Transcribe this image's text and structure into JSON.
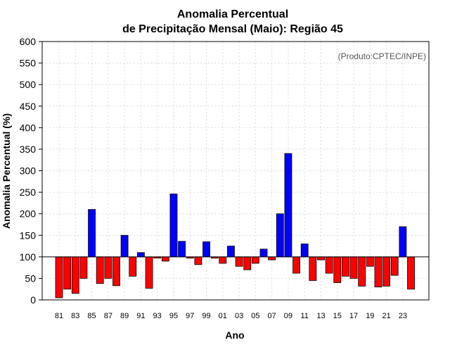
{
  "chart_data": {
    "type": "bar",
    "title_line1": "Anomalia Percentual",
    "title_line2": "de Precipitação Mensal (Maio): Região 45",
    "xlabel": "Ano",
    "ylabel": "Anomalia Percentual (%)",
    "credit": "(Produto:CPTEC/INPE)",
    "ylim": [
      0,
      600
    ],
    "yticks": [
      0,
      50,
      100,
      150,
      200,
      250,
      300,
      350,
      400,
      450,
      500,
      550,
      600
    ],
    "baseline": 100,
    "above_color": "#0000ff",
    "below_color": "#ff0000",
    "categories": [
      "81",
      "82",
      "83",
      "84",
      "85",
      "86",
      "87",
      "88",
      "89",
      "90",
      "91",
      "92",
      "93",
      "94",
      "95",
      "96",
      "97",
      "98",
      "99",
      "00",
      "01",
      "02",
      "03",
      "04",
      "05",
      "06",
      "07",
      "08",
      "09",
      "10",
      "11",
      "12",
      "13",
      "14",
      "15",
      "16",
      "17",
      "18",
      "19",
      "20",
      "21",
      "22",
      "23",
      "24"
    ],
    "x_tick_labels": [
      "81",
      "83",
      "85",
      "87",
      "89",
      "91",
      "93",
      "95",
      "97",
      "99",
      "01",
      "03",
      "05",
      "07",
      "09",
      "11",
      "13",
      "15",
      "17",
      "19",
      "21",
      "23"
    ],
    "values": [
      5,
      25,
      15,
      50,
      210,
      38,
      50,
      33,
      150,
      55,
      110,
      27,
      97,
      90,
      246,
      136,
      97,
      82,
      135,
      97,
      85,
      125,
      78,
      70,
      85,
      118,
      93,
      200,
      340,
      62,
      130,
      45,
      93,
      62,
      40,
      55,
      50,
      32,
      78,
      30,
      32,
      57,
      170,
      25
    ]
  }
}
